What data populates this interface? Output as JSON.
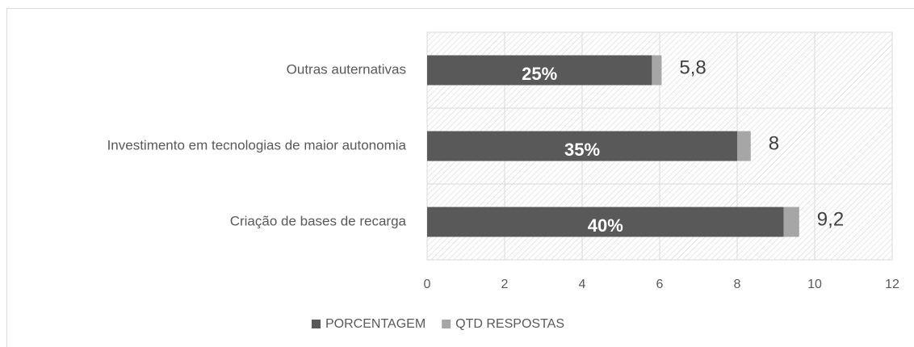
{
  "chart_data": {
    "type": "stacked_barh",
    "categories": [
      "Outras auternativas",
      "Investimento em tecnologias de maior autonomia",
      "Criação de bases de recarga"
    ],
    "series": [
      {
        "name": "PORCENTAGEM",
        "color": "#595959",
        "values": [
          5.8,
          8,
          9.2
        ],
        "value_labels": [
          "5,8",
          "8",
          "9,2"
        ]
      },
      {
        "name": "QTD RESPOSTAS",
        "color": "#a6a6a6",
        "values": [
          0.25,
          0.35,
          0.4
        ],
        "value_labels": [
          "25%",
          "35%",
          "40%"
        ]
      }
    ],
    "xlim": [
      0,
      12
    ],
    "xticks": [
      0,
      2,
      4,
      6,
      8,
      10,
      12
    ],
    "grid": true,
    "legend": "bottom"
  }
}
